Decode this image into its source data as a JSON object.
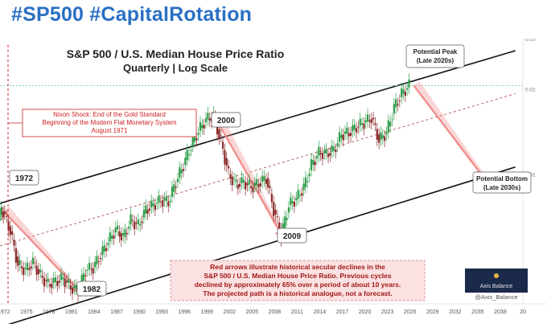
{
  "header": {
    "hashtags": "#SP500 #CapitalRotation"
  },
  "chart_data": {
    "type": "candlestick",
    "title": "S&P 500 / U.S. Median House Price Ratio",
    "subtitle": "Quarterly | Log Scale",
    "x_ticks": [
      "1972",
      "1975",
      "1978",
      "1981",
      "1984",
      "1987",
      "1990",
      "1993",
      "1996",
      "1999",
      "2002",
      "2005",
      "2008",
      "2011",
      "2014",
      "2017",
      "2020",
      "2023",
      "2026",
      "2029",
      "2032",
      "2035",
      "2038",
      "20"
    ],
    "x_range": [
      1971.5,
      2041
    ],
    "y_scale": "log",
    "y_range": [
      0.0035,
      0.03
    ],
    "y_ticks_visible": [
      "0.03",
      "0.02",
      "0.01"
    ],
    "last_value_line": 0.0205,
    "series": [
      {
        "values": [
          [
            1971.5,
            0.0072
          ],
          [
            1972,
            0.0074
          ],
          [
            1973,
            0.0063
          ],
          [
            1974,
            0.0048
          ],
          [
            1975,
            0.0046
          ],
          [
            1976,
            0.0049
          ],
          [
            1977,
            0.0044
          ],
          [
            1978,
            0.0041
          ],
          [
            1979,
            0.0042
          ],
          [
            1980,
            0.0043
          ],
          [
            1981,
            0.004
          ],
          [
            1982,
            0.0039
          ],
          [
            1983,
            0.0046
          ],
          [
            1984,
            0.0047
          ],
          [
            1985,
            0.0052
          ],
          [
            1986,
            0.0058
          ],
          [
            1987,
            0.0064
          ],
          [
            1988,
            0.006
          ],
          [
            1989,
            0.0069
          ],
          [
            1990,
            0.0066
          ],
          [
            1991,
            0.0075
          ],
          [
            1992,
            0.0078
          ],
          [
            1993,
            0.0081
          ],
          [
            1994,
            0.008
          ],
          [
            1995,
            0.0094
          ],
          [
            1996,
            0.0108
          ],
          [
            1997,
            0.0126
          ],
          [
            1998,
            0.0142
          ],
          [
            1999,
            0.0156
          ],
          [
            2000,
            0.016
          ],
          [
            2001,
            0.013
          ],
          [
            2002,
            0.01
          ],
          [
            2003,
            0.0092
          ],
          [
            2004,
            0.0094
          ],
          [
            2005,
            0.009
          ],
          [
            2006,
            0.0093
          ],
          [
            2007,
            0.0097
          ],
          [
            2008,
            0.0075
          ],
          [
            2009,
            0.0061
          ],
          [
            2010,
            0.0078
          ],
          [
            2011,
            0.0082
          ],
          [
            2012,
            0.009
          ],
          [
            2013,
            0.0108
          ],
          [
            2014,
            0.0119
          ],
          [
            2015,
            0.0118
          ],
          [
            2016,
            0.0122
          ],
          [
            2017,
            0.0138
          ],
          [
            2018,
            0.014
          ],
          [
            2019,
            0.0147
          ],
          [
            2020,
            0.0152
          ],
          [
            2021,
            0.0158
          ],
          [
            2022,
            0.0132
          ],
          [
            2023,
            0.014
          ],
          [
            2024,
            0.0172
          ],
          [
            2025,
            0.0192
          ],
          [
            2026,
            0.0205
          ]
        ]
      }
    ],
    "channel": {
      "upper": [
        [
          1971.5,
          0.0079
        ],
        [
          2040,
          0.0272
        ]
      ],
      "middle": [
        [
          1971.5,
          0.0056
        ],
        [
          2040,
          0.0192
        ]
      ],
      "lower": [
        [
          1971.5,
          0.0029
        ],
        [
          2040,
          0.0106
        ]
      ]
    },
    "projection_arrows": [
      {
        "from": [
          1972,
          0.0074
        ],
        "to": [
          1982,
          0.0039
        ]
      },
      {
        "from": [
          2000,
          0.016
        ],
        "to": [
          2009,
          0.0061
        ]
      },
      {
        "from": [
          2026.5,
          0.0205
        ],
        "to": [
          2036.8,
          0.009
        ]
      }
    ],
    "annotations": {
      "nixon": [
        "Nixon Shock: End of the Gold Standard",
        "Beginning of the Modern Fiat Monetary System",
        "August 1971"
      ],
      "label_1972": "1972",
      "label_1982": "1982",
      "label_2000": "2000",
      "label_2009": "2009",
      "peak": [
        "Potential Peak",
        "(Late 2020s)"
      ],
      "bottom": [
        "Potential Bottom",
        "(Late 2030s)"
      ],
      "note": [
        "Red arrows illustrate historical secular declines in the",
        "S&P 500 / U.S. Median House Price Ratio. Previous cycles",
        "declined by approximately 65% over a period of about 10 years.",
        "The projected path is a historical analogue, not a forecast."
      ],
      "logo_text": "Axis Balance",
      "handle": "@Axis_Balance"
    },
    "colors": {
      "up": "#2e9d4a",
      "down": "#8b2a2a",
      "arrow": "#f28a8a",
      "channel": "#111111",
      "middle": "#b25050",
      "nixon_line": "#cc2222",
      "note_bg": "#fbe1e1",
      "last_line": "#7fd0c8"
    }
  }
}
